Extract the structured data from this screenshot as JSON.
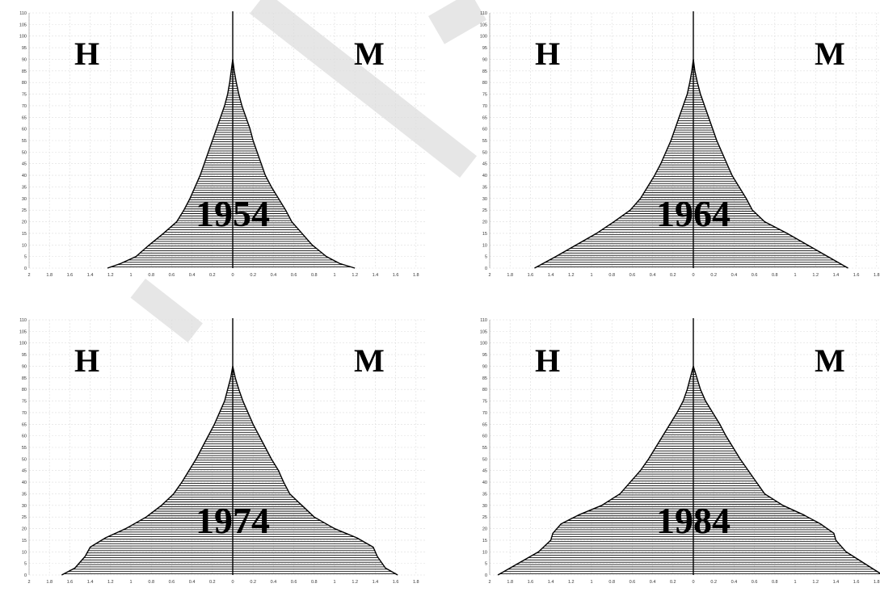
{
  "labels": {
    "left": "H",
    "right": "M"
  },
  "colors": {
    "bar": "#111111",
    "grid": "#dddddd",
    "axis": "#000000"
  },
  "chart_data": [
    {
      "type": "bar",
      "year": "1954",
      "xlim": [
        2,
        1.8
      ],
      "ylim": [
        0,
        110
      ],
      "x_ticks": [
        "2",
        "1.8",
        "1.6",
        "1.4",
        "1.2",
        "1",
        "0.8",
        "0.6",
        "0.4",
        "0.2",
        "0",
        "0.2",
        "0.4",
        "0.6",
        "0.8",
        "1",
        "1.2",
        "1.4",
        "1.6",
        "1.8"
      ],
      "y_ticks": [
        "0",
        "5",
        "10",
        "15",
        "20",
        "25",
        "30",
        "35",
        "40",
        "45",
        "50",
        "55",
        "60",
        "65",
        "70",
        "75",
        "80",
        "85",
        "90",
        "95",
        "100",
        "105",
        "110"
      ],
      "age_profile": [
        [
          0,
          1.23,
          1.2
        ],
        [
          2,
          1.1,
          1.05
        ],
        [
          5,
          0.95,
          0.92
        ],
        [
          10,
          0.82,
          0.78
        ],
        [
          15,
          0.68,
          0.68
        ],
        [
          20,
          0.55,
          0.58
        ],
        [
          25,
          0.48,
          0.52
        ],
        [
          30,
          0.42,
          0.45
        ],
        [
          35,
          0.37,
          0.38
        ],
        [
          40,
          0.32,
          0.32
        ],
        [
          45,
          0.28,
          0.28
        ],
        [
          50,
          0.24,
          0.24
        ],
        [
          55,
          0.2,
          0.2
        ],
        [
          60,
          0.16,
          0.17
        ],
        [
          65,
          0.12,
          0.13
        ],
        [
          70,
          0.08,
          0.09
        ],
        [
          75,
          0.05,
          0.06
        ],
        [
          80,
          0.03,
          0.035
        ],
        [
          85,
          0.015,
          0.015
        ],
        [
          90,
          0,
          0
        ]
      ]
    },
    {
      "type": "bar",
      "year": "1964",
      "xlim": [
        2,
        1.8
      ],
      "ylim": [
        0,
        110
      ],
      "x_ticks": [
        "2",
        "1.8",
        "1.6",
        "1.4",
        "1.2",
        "1",
        "0.8",
        "0.6",
        "0.4",
        "0.2",
        "0",
        "0.2",
        "0.4",
        "0.6",
        "0.8",
        "1",
        "1.2",
        "1.4",
        "1.6",
        "1.8"
      ],
      "y_ticks": [
        "0",
        "5",
        "10",
        "15",
        "20",
        "25",
        "30",
        "35",
        "40",
        "45",
        "50",
        "55",
        "60",
        "65",
        "70",
        "75",
        "80",
        "85",
        "90",
        "95",
        "100",
        "105",
        "110"
      ],
      "age_profile": [
        [
          0,
          1.56,
          1.52
        ],
        [
          5,
          1.35,
          1.32
        ],
        [
          10,
          1.15,
          1.12
        ],
        [
          15,
          0.95,
          0.92
        ],
        [
          20,
          0.78,
          0.7
        ],
        [
          25,
          0.62,
          0.58
        ],
        [
          30,
          0.52,
          0.52
        ],
        [
          35,
          0.45,
          0.45
        ],
        [
          40,
          0.38,
          0.38
        ],
        [
          45,
          0.32,
          0.33
        ],
        [
          50,
          0.27,
          0.28
        ],
        [
          55,
          0.22,
          0.23
        ],
        [
          60,
          0.18,
          0.19
        ],
        [
          65,
          0.14,
          0.15
        ],
        [
          70,
          0.1,
          0.11
        ],
        [
          75,
          0.06,
          0.07
        ],
        [
          80,
          0.035,
          0.04
        ],
        [
          85,
          0.015,
          0.015
        ],
        [
          90,
          0,
          0
        ]
      ]
    },
    {
      "type": "bar",
      "year": "1974",
      "xlim": [
        2,
        1.8
      ],
      "ylim": [
        0,
        110
      ],
      "x_ticks": [
        "2",
        "1.8",
        "1.6",
        "1.4",
        "1.2",
        "1",
        "0.8",
        "0.6",
        "0.4",
        "0.2",
        "0",
        "0.2",
        "0.4",
        "0.6",
        "0.8",
        "1",
        "1.2",
        "1.4",
        "1.6",
        "1.8"
      ],
      "y_ticks": [
        "0",
        "5",
        "10",
        "15",
        "20",
        "25",
        "30",
        "35",
        "40",
        "45",
        "50",
        "55",
        "60",
        "65",
        "70",
        "75",
        "80",
        "85",
        "90",
        "95",
        "100",
        "105",
        "110"
      ],
      "age_profile": [
        [
          0,
          1.68,
          1.62
        ],
        [
          3,
          1.55,
          1.5
        ],
        [
          8,
          1.45,
          1.42
        ],
        [
          12,
          1.4,
          1.38
        ],
        [
          16,
          1.25,
          1.22
        ],
        [
          20,
          1.05,
          1.0
        ],
        [
          25,
          0.85,
          0.8
        ],
        [
          30,
          0.7,
          0.68
        ],
        [
          35,
          0.58,
          0.56
        ],
        [
          40,
          0.5,
          0.5
        ],
        [
          45,
          0.43,
          0.45
        ],
        [
          50,
          0.36,
          0.38
        ],
        [
          55,
          0.3,
          0.32
        ],
        [
          60,
          0.24,
          0.26
        ],
        [
          65,
          0.18,
          0.2
        ],
        [
          70,
          0.13,
          0.15
        ],
        [
          75,
          0.08,
          0.1
        ],
        [
          80,
          0.05,
          0.06
        ],
        [
          85,
          0.02,
          0.025
        ],
        [
          90,
          0,
          0
        ]
      ]
    },
    {
      "type": "bar",
      "year": "1984",
      "xlim": [
        2,
        1.8
      ],
      "ylim": [
        0,
        110
      ],
      "x_ticks": [
        "2",
        "1.8",
        "1.6",
        "1.4",
        "1.2",
        "1",
        "0.8",
        "0.6",
        "0.4",
        "0.2",
        "0",
        "0.2",
        "0.4",
        "0.6",
        "0.8",
        "1",
        "1.2",
        "1.4",
        "1.6",
        "1.8"
      ],
      "y_ticks": [
        "0",
        "5",
        "10",
        "15",
        "20",
        "25",
        "30",
        "35",
        "40",
        "45",
        "50",
        "55",
        "60",
        "65",
        "70",
        "75",
        "80",
        "85",
        "90",
        "95",
        "100",
        "105",
        "110"
      ],
      "age_profile": [
        [
          0,
          1.92,
          1.86
        ],
        [
          5,
          1.72,
          1.68
        ],
        [
          10,
          1.52,
          1.5
        ],
        [
          15,
          1.4,
          1.4
        ],
        [
          18,
          1.38,
          1.38
        ],
        [
          22,
          1.3,
          1.25
        ],
        [
          26,
          1.12,
          1.08
        ],
        [
          30,
          0.9,
          0.88
        ],
        [
          35,
          0.72,
          0.7
        ],
        [
          40,
          0.62,
          0.62
        ],
        [
          45,
          0.52,
          0.54
        ],
        [
          50,
          0.44,
          0.46
        ],
        [
          55,
          0.37,
          0.39
        ],
        [
          60,
          0.3,
          0.32
        ],
        [
          65,
          0.23,
          0.26
        ],
        [
          70,
          0.16,
          0.19
        ],
        [
          75,
          0.1,
          0.12
        ],
        [
          80,
          0.06,
          0.07
        ],
        [
          85,
          0.03,
          0.035
        ],
        [
          90,
          0,
          0
        ]
      ]
    }
  ]
}
